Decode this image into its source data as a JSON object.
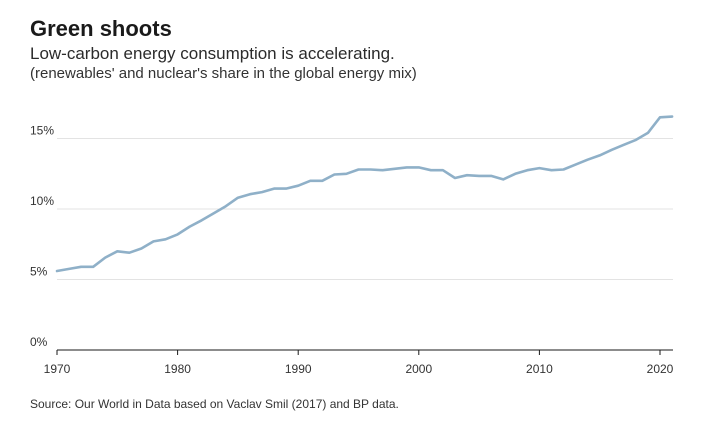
{
  "header": {
    "title": "Green shoots",
    "subtitle": "Low-carbon energy consumption is accelerating.",
    "subtitle2": "(renewables' and nuclear's share in the global energy mix)"
  },
  "footer": {
    "source": "Source: Our World in Data based on Vaclav Smil (2017) and BP data."
  },
  "colors": {
    "line": "#8fb0c8",
    "grid": "#e3e3e3",
    "axis": "#1a1a1a"
  },
  "chart_data": {
    "type": "line",
    "title": "Green shoots",
    "subtitle": "Low-carbon energy consumption is accelerating.",
    "xlabel": "",
    "ylabel": "",
    "xlim": [
      1970,
      2021
    ],
    "ylim": [
      0,
      15
    ],
    "x_ticks": [
      1970,
      1980,
      1990,
      2000,
      2010,
      2020
    ],
    "x_tick_labels": [
      "1970",
      "1980",
      "1990",
      "2000",
      "2010",
      "2020"
    ],
    "y_ticks": [
      0,
      5,
      10,
      15
    ],
    "y_tick_labels": [
      "0%",
      "5%",
      "10%",
      "15%"
    ],
    "grid": true,
    "series": [
      {
        "name": "Renewables and nuclear share",
        "x": [
          1970,
          1971,
          1972,
          1973,
          1974,
          1975,
          1976,
          1977,
          1978,
          1979,
          1980,
          1981,
          1982,
          1983,
          1984,
          1985,
          1986,
          1987,
          1988,
          1989,
          1990,
          1991,
          1992,
          1993,
          1994,
          1995,
          1996,
          1997,
          1998,
          1999,
          2000,
          2001,
          2002,
          2003,
          2004,
          2005,
          2006,
          2007,
          2008,
          2009,
          2010,
          2011,
          2012,
          2013,
          2014,
          2015,
          2016,
          2017,
          2018,
          2019,
          2020,
          2021
        ],
        "values": [
          5.6,
          5.75,
          5.9,
          5.9,
          6.55,
          7.0,
          6.9,
          7.2,
          7.7,
          7.85,
          8.2,
          8.75,
          9.2,
          9.7,
          10.2,
          10.8,
          11.05,
          11.2,
          11.45,
          11.45,
          11.65,
          12.0,
          12.0,
          12.45,
          12.5,
          12.8,
          12.8,
          12.75,
          12.85,
          12.95,
          12.95,
          12.75,
          12.75,
          12.2,
          12.4,
          12.35,
          12.35,
          12.1,
          12.5,
          12.75,
          12.9,
          12.75,
          12.8,
          13.15,
          13.5,
          13.8,
          14.2,
          14.55,
          14.9,
          15.4,
          16.5,
          16.55
        ]
      }
    ]
  }
}
